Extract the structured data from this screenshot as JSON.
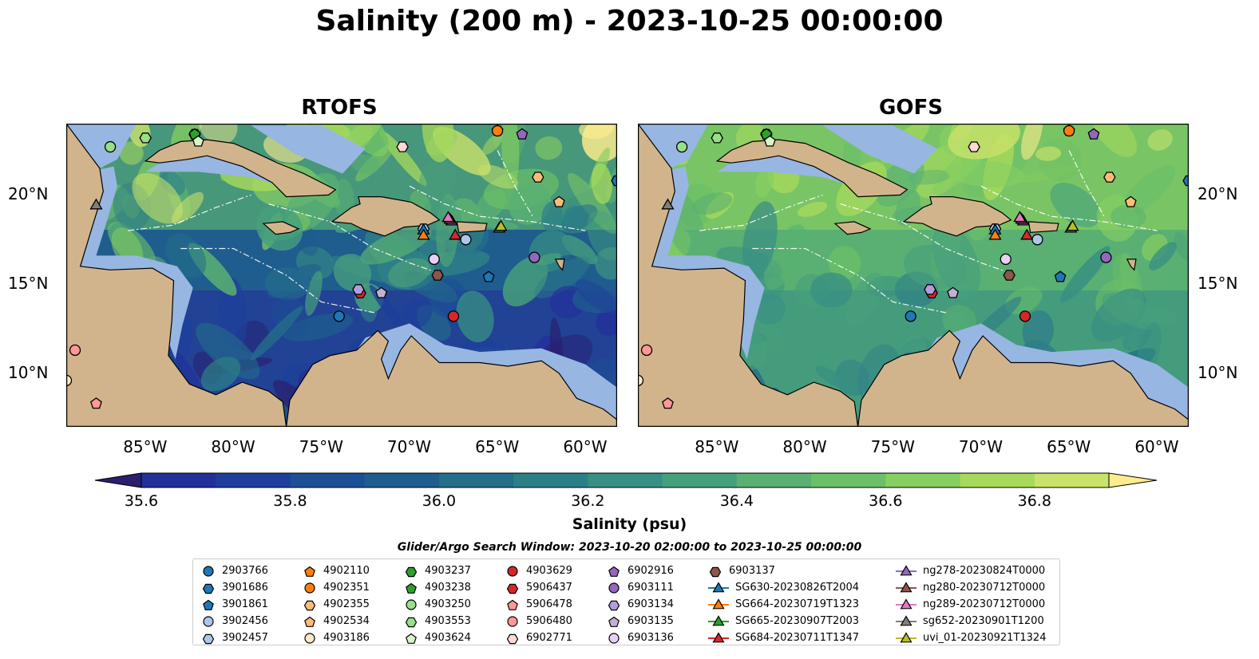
{
  "title": "Salinity (200 m) - 2023-10-25 00:00:00",
  "panels": [
    {
      "title": "RTOFS"
    },
    {
      "title": "GOFS"
    }
  ],
  "colors": {
    "land": "#d2b48c",
    "shelf": "#97b6e1",
    "coast": "#000000",
    "colormap": [
      "#2a1f6e",
      "#23309a",
      "#1d3f9b",
      "#1d4f95",
      "#1e5d8e",
      "#246e8a",
      "#2d7f87",
      "#388f83",
      "#47a07c",
      "#59b072",
      "#6cc067",
      "#87cf60",
      "#a7d95c",
      "#c9e26a",
      "#fbec8e"
    ]
  },
  "chart_data": {
    "type": "heatmap",
    "xlabel": "",
    "ylabel": "",
    "x_ticks": [
      "85°W",
      "80°W",
      "75°W",
      "70°W",
      "65°W",
      "60°W"
    ],
    "y_ticks": [
      "20°N",
      "15°N",
      "10°N"
    ],
    "xlim": [
      -89.5,
      -58.2
    ],
    "ylim": [
      7.0,
      24.0
    ],
    "x_tick_values": [
      -85,
      -80,
      -75,
      -70,
      -65,
      -60
    ],
    "y_tick_values": [
      20,
      15,
      10
    ],
    "colorbar": {
      "label": "Salinity (psu)",
      "range": [
        35.6,
        36.9
      ],
      "ticks": [
        "35.6",
        "35.8",
        "36.0",
        "36.2",
        "36.4",
        "36.6",
        "36.8"
      ],
      "tick_values": [
        35.6,
        35.8,
        36.0,
        36.2,
        36.4,
        36.6,
        36.8
      ]
    },
    "legend_title": "Glider/Argo Search Window: 2023-10-20 02:00:00 to 2023-10-25 00:00:00",
    "series": [
      {
        "name": "2903766",
        "marker": "circle",
        "color": "#1f77b4",
        "lon": -74.0,
        "lat": 13.2
      },
      {
        "name": "3901686",
        "marker": "hexagon",
        "color": "#1f77b4",
        "lon": -58.2,
        "lat": 20.8
      },
      {
        "name": "3901861",
        "marker": "pentagon",
        "color": "#1f77b4",
        "lon": -65.5,
        "lat": 15.4
      },
      {
        "name": "3902456",
        "marker": "circle",
        "color": "#aec7e8",
        "lon": -66.8,
        "lat": 17.5
      },
      {
        "name": "3902457",
        "marker": "hexagon",
        "color": "#aec7e8",
        "lon": -69.2,
        "lat": 18.1
      },
      {
        "name": "4902110",
        "marker": "pentagon",
        "color": "#ff7f0e",
        "lon": -65.0,
        "lat": 23.6
      },
      {
        "name": "4902351",
        "marker": "circle",
        "color": "#ff7f0e",
        "lon": -65.0,
        "lat": 23.6
      },
      {
        "name": "4902355",
        "marker": "hexagon",
        "color": "#ffbb78",
        "lon": -62.7,
        "lat": 21.0
      },
      {
        "name": "4902534",
        "marker": "pentagon",
        "color": "#ffbb78",
        "lon": -61.5,
        "lat": 19.6
      },
      {
        "name": "4903186",
        "marker": "circle",
        "color": "#ffe8c8",
        "lon": -89.5,
        "lat": 9.6
      },
      {
        "name": "4903237",
        "marker": "hexagon",
        "color": "#2ca02c",
        "lon": -82.2,
        "lat": 23.4
      },
      {
        "name": "4903238",
        "marker": "pentagon",
        "color": "#2ca02c",
        "lon": -82.2,
        "lat": 23.4
      },
      {
        "name": "4903250",
        "marker": "circle",
        "color": "#98df8a",
        "lon": -87.0,
        "lat": 22.7
      },
      {
        "name": "4903553",
        "marker": "hexagon",
        "color": "#98df8a",
        "lon": -85.0,
        "lat": 23.2
      },
      {
        "name": "4903624",
        "marker": "pentagon",
        "color": "#d8f5c8",
        "lon": -82.0,
        "lat": 23.0
      },
      {
        "name": "4903629",
        "marker": "circle",
        "color": "#d62728",
        "lon": -67.5,
        "lat": 13.2
      },
      {
        "name": "5906437",
        "marker": "hexagon",
        "color": "#d62728",
        "lon": -72.8,
        "lat": 14.5
      },
      {
        "name": "5906478",
        "marker": "pentagon",
        "color": "#ff9896",
        "lon": -87.8,
        "lat": 8.3
      },
      {
        "name": "5906480",
        "marker": "circle",
        "color": "#ff9896",
        "lon": -89.0,
        "lat": 11.3
      },
      {
        "name": "6902771",
        "marker": "hexagon",
        "color": "#ffd8d8",
        "lon": -70.4,
        "lat": 22.7
      },
      {
        "name": "6902916",
        "marker": "pentagon",
        "color": "#9467bd",
        "lon": -63.6,
        "lat": 23.4
      },
      {
        "name": "6903111",
        "marker": "circle",
        "color": "#9467bd",
        "lon": -62.9,
        "lat": 16.5
      },
      {
        "name": "6903134",
        "marker": "hexagon",
        "color": "#b39ddb",
        "lon": -72.9,
        "lat": 14.7
      },
      {
        "name": "6903135",
        "marker": "pentagon",
        "color": "#c5b0d5",
        "lon": -71.6,
        "lat": 14.5
      },
      {
        "name": "6903136",
        "marker": "circle",
        "color": "#e8d0f5",
        "lon": -68.6,
        "lat": 16.4
      },
      {
        "name": "6903137",
        "marker": "hexagon",
        "color": "#8c564b",
        "lon": -68.4,
        "lat": 15.5
      },
      {
        "name": "SG630-20230826T2004",
        "marker": "triangle",
        "color": "#1f77b4",
        "line": true,
        "lon": -69.2,
        "lat": 18.0
      },
      {
        "name": "SG664-20230719T1323",
        "marker": "triangle",
        "color": "#ff7f0e",
        "line": true,
        "lon": -69.2,
        "lat": 17.7
      },
      {
        "name": "SG665-20230907T2003",
        "marker": "triangle",
        "color": "#2ca02c",
        "line": true,
        "lon": -64.9,
        "lat": 18.1
      },
      {
        "name": "SG684-20230711T1347",
        "marker": "triangle",
        "color": "#d62728",
        "line": true,
        "lon": -67.4,
        "lat": 17.7
      },
      {
        "name": "ng278-20230824T0000",
        "marker": "triangle",
        "color": "#9467bd",
        "line": true,
        "lon": -67.6,
        "lat": 18.5
      },
      {
        "name": "ng280-20230712T0000",
        "marker": "triangle",
        "color": "#8c564b",
        "line": true,
        "lon": -67.7,
        "lat": 18.6
      },
      {
        "name": "ng289-20230712T0000",
        "marker": "triangle",
        "color": "#e377c2",
        "line": true,
        "lon": -67.8,
        "lat": 18.7
      },
      {
        "name": "sg652-20230901T1200",
        "marker": "triangle",
        "color": "#7f7f7f",
        "line": true,
        "lon": -87.8,
        "lat": 19.4
      },
      {
        "name": "uvi_01-20230921T1324",
        "marker": "triangle",
        "color": "#bcbd22",
        "line": true,
        "lon": -64.8,
        "lat": 18.2
      }
    ]
  }
}
